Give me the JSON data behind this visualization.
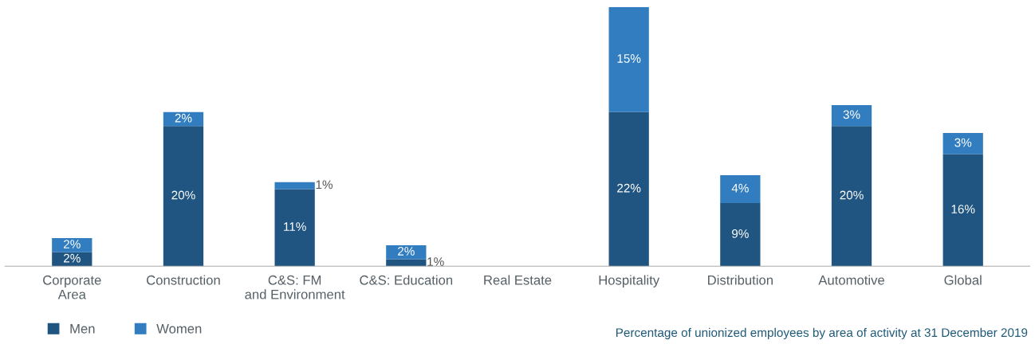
{
  "chart_data": {
    "type": "bar",
    "stacked": true,
    "legend": "bottom left",
    "grid": false,
    "categories": [
      "Corporate\nArea",
      "Construction",
      "C&S: FM\nand Environment",
      "C&S: Education",
      "Real Estate",
      "Hospitality",
      "Distribution",
      "Automotive",
      "Global"
    ],
    "series": [
      {
        "name": "Men",
        "color": "#1f5580",
        "values": [
          2,
          20,
          11,
          1,
          null,
          22,
          9,
          20,
          16
        ],
        "value_labels": [
          "2%",
          "20%",
          "11%",
          "1%",
          null,
          "22%",
          "9%",
          "20%",
          "16%"
        ]
      },
      {
        "name": "Women",
        "color": "#317dbf",
        "values": [
          2,
          2,
          1,
          2,
          null,
          15,
          4,
          3,
          3
        ],
        "value_labels": [
          "2%",
          "2%",
          "1%",
          "2%",
          null,
          "15%",
          "4%",
          "3%",
          "3%"
        ]
      }
    ],
    "annotations": [
      "Percentage of unionized employees by area of activity at 31 December 2019"
    ]
  }
}
